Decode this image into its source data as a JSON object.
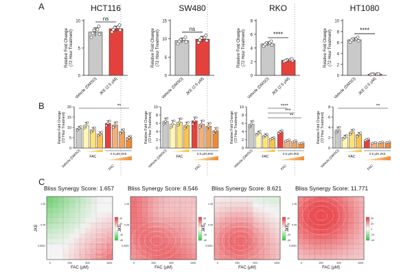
{
  "colors": {
    "vehicle": "#c9c9c9",
    "jke": "#e5413c",
    "fac": [
      "#fff6b3",
      "#fde27a",
      "#fcc24d",
      "#f7a23a"
    ],
    "combo": [
      "#f3a18e",
      "#f1b07c",
      "#efa25d",
      "#e98a3a"
    ],
    "synergy_red": "#e8333a",
    "synergy_green": "#38c13b",
    "axis": "#222222",
    "divider": "#999999"
  },
  "panels": {
    "A": "A",
    "B": "B",
    "C": "C"
  },
  "chart_data": [
    {
      "panel": "A",
      "type": "bar",
      "title": "HCT116",
      "ylabel": "Relative Fold Change\n(72 Hour Treatment)",
      "categories": [
        "Vehicle (DMSO)",
        "JKE (2.5 μM)"
      ],
      "values": [
        7.9,
        8.5
      ],
      "errors": [
        0.8,
        0.5
      ],
      "ylim": [
        0,
        10
      ],
      "yticks": [
        "0",
        "5",
        "10"
      ],
      "significance": "ns"
    },
    {
      "panel": "A",
      "type": "bar",
      "title": "SW480",
      "ylabel": "Relative Fold Change\n(72 Hour Treatment)",
      "categories": [
        "Vehicle (DMSO)",
        "JKE (2.5 μM)"
      ],
      "values": [
        9.5,
        9.9
      ],
      "errors": [
        0.7,
        0.8
      ],
      "ylim": [
        0,
        15
      ],
      "yticks": [
        "0",
        "5",
        "10",
        "15"
      ],
      "significance": "ns"
    },
    {
      "panel": "A",
      "type": "bar",
      "title": "RKO",
      "ylabel": "Relative Fold Change\n(72 Hour Treatment)",
      "categories": [
        "Vehicle (DMSO)",
        "JKE (2.5 μM)"
      ],
      "values": [
        4.6,
        2.2
      ],
      "errors": [
        0.3,
        0.15
      ],
      "ylim": [
        0,
        8
      ],
      "yticks": [
        "0",
        "2",
        "4",
        "6",
        "8"
      ],
      "significance": "****"
    },
    {
      "panel": "A",
      "type": "bar",
      "title": "HT1080",
      "ylabel": "Relative Fold Change\n(72 Hour Treatment)",
      "categories": [
        "Vehicle (DMSO)",
        "JKE (2.5 μM)"
      ],
      "values": [
        6.5,
        0.2
      ],
      "errors": [
        0.35,
        0.05
      ],
      "ylim": [
        0,
        10
      ],
      "yticks": [
        "0",
        "2",
        "4",
        "6",
        "8",
        "10"
      ],
      "significance": "****"
    },
    {
      "panel": "B",
      "type": "bar",
      "cell": "HCT116",
      "ylabel": "Relative Fold Change\n(72 Hour Treatment)",
      "vehicle_label": "Vehicle (DMSO)",
      "fac_label": "FAC",
      "combo_label": "2.5 μM JKE",
      "combo_fac_label": "FAC",
      "values": [
        9.5,
        11.0,
        8.8,
        6.8,
        12.0,
        11.2,
        8.0,
        5.0
      ],
      "errors": [
        1.0,
        1.5,
        1.2,
        1.0,
        1.3,
        1.4,
        1.1,
        0.8
      ],
      "ylim": [
        0,
        20
      ],
      "yticks": [
        "0",
        "5",
        "10",
        "15",
        "20"
      ],
      "significance": [
        "**"
      ]
    },
    {
      "panel": "B",
      "type": "bar",
      "cell": "SW480",
      "ylabel": "Relative Fold Change\n(72 Hour Treatment)",
      "vehicle_label": "Vehicle (DMSO)",
      "fac_label": "FAC",
      "combo_label": "2.5 μM JKE",
      "combo_fac_label": "FAC",
      "values": [
        6.5,
        5.8,
        6.3,
        5.5,
        6.6,
        5.8,
        5.3,
        4.2
      ],
      "errors": [
        0.8,
        0.9,
        0.9,
        0.8,
        0.9,
        0.9,
        0.8,
        0.7
      ],
      "ylim": [
        0,
        10
      ],
      "yticks": [
        "0",
        "2",
        "4",
        "6",
        "8",
        "10"
      ],
      "significance": []
    },
    {
      "panel": "B",
      "type": "bar",
      "cell": "RKO",
      "ylabel": "Relative Fold Change\n(72 Hour Treatment)",
      "vehicle_label": "Vehicle (DMSO)",
      "fac_label": "FAC",
      "combo_label": "2.5 μM JKE",
      "combo_fac_label": "FAC",
      "values": [
        5.8,
        3.6,
        3.0,
        2.3,
        3.9,
        1.8,
        1.6,
        1.2
      ],
      "errors": [
        0.8,
        0.5,
        0.4,
        0.3,
        0.4,
        0.2,
        0.2,
        0.1
      ],
      "ylim": [
        0,
        10
      ],
      "yticks": [
        "0",
        "2",
        "4",
        "6",
        "8",
        "10"
      ],
      "significance": [
        "****",
        "***",
        "**"
      ]
    },
    {
      "panel": "B",
      "type": "bar",
      "cell": "HT1080",
      "ylabel": "Relative Fold Change\n(72 Hour Treatment)",
      "vehicle_label": "Vehicle (DMSO)",
      "fac_label": "FAC",
      "combo_label": "2.5 μM JKE",
      "combo_fac_label": "FAC",
      "values": [
        3.5,
        2.1,
        3.1,
        2.6,
        1.6,
        1.0,
        1.1,
        1.1
      ],
      "errors": [
        0.6,
        0.4,
        0.5,
        0.4,
        0.2,
        0.1,
        0.1,
        0.1
      ],
      "ylim": [
        0,
        8
      ],
      "yticks": [
        "0",
        "2",
        "4",
        "6",
        "8"
      ],
      "significance": [
        "**"
      ]
    },
    {
      "panel": "C",
      "type": "heatmap",
      "title": "Bliss Synergy Score: 1.657",
      "score": 1.657,
      "xlabel": "FAC (μM)",
      "ylabel": "JKE",
      "xticks": [
        "0",
        "250",
        "500",
        "1000"
      ],
      "yticks": [
        "0.0001",
        "0.25",
        "1.25"
      ],
      "legend_ticks": [
        "40",
        "20",
        "0",
        "-20",
        "-40"
      ],
      "legend": "right"
    },
    {
      "panel": "C",
      "type": "heatmap",
      "title": "Bliss Synergy Score: 8.546",
      "score": 8.546,
      "xlabel": "FAC (μM)",
      "ylabel": "JKE",
      "xticks": [
        "0",
        "250",
        "500",
        "1000"
      ],
      "yticks": [
        "0.0001",
        "0.25",
        "1.25"
      ],
      "legend_ticks": [
        "40",
        "20",
        "0",
        "-20",
        "-40"
      ],
      "legend": "right"
    },
    {
      "panel": "C",
      "type": "heatmap",
      "title": "Bliss Synergy Score: 8.621",
      "score": 8.621,
      "xlabel": "FAC (μM)",
      "ylabel": "JKE",
      "xticks": [
        "0",
        "250",
        "500",
        "1000"
      ],
      "yticks": [
        "0.0001",
        "0.25",
        "1.25"
      ],
      "legend_ticks": [
        "40",
        "20",
        "0",
        "-20",
        "-40"
      ],
      "legend": "right"
    },
    {
      "panel": "C",
      "type": "heatmap",
      "title": "Bliss Synergy Score: 11.771",
      "score": 11.771,
      "xlabel": "FAC (μM)",
      "ylabel": "JKE",
      "xticks": [
        "0",
        "250",
        "500",
        "1000"
      ],
      "yticks": [
        "0.0001",
        "0.25",
        "1.25"
      ],
      "legend_ticks": [
        "40",
        "20",
        "0",
        "-20",
        "-40"
      ],
      "legend": "right"
    }
  ]
}
